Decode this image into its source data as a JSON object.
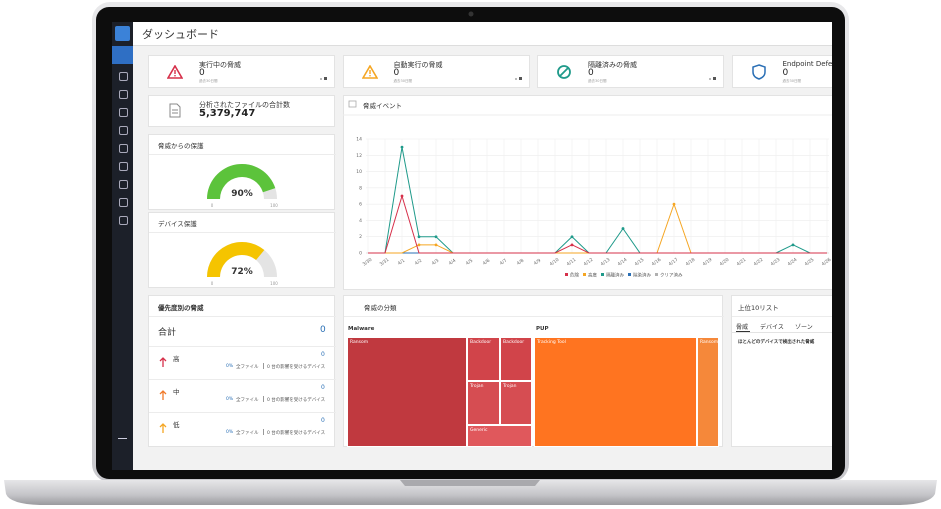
{
  "header": {
    "title": "ダッシュボード"
  },
  "cards": [
    {
      "label": "実行中の脅威",
      "value": 0,
      "note": "過去30日間"
    },
    {
      "label": "自動実行の脅威",
      "value": 0,
      "note": "過去30日間"
    },
    {
      "label": "隔離済みの脅威",
      "value": 0,
      "note": "過去30日間"
    },
    {
      "label": "Endpoint Defense",
      "value": 0,
      "note": "過去30日間"
    }
  ],
  "files": {
    "label": "分析されたファイルの合計数",
    "value": "5,379,747"
  },
  "gauges": [
    {
      "title": "脅威からの保護",
      "value": 90,
      "value_label": "90%",
      "range": [
        0,
        100
      ],
      "color": "#5cc33b"
    },
    {
      "title": "デバイス保護",
      "value": 72,
      "value_label": "72%",
      "range": [
        0,
        100
      ],
      "color": "#f5c400"
    }
  ],
  "priority": {
    "title": "優先度別の脅威",
    "total_label": "合計",
    "total": 0,
    "rows": [
      {
        "level": "高",
        "count": 0,
        "pct": "0%",
        "files": "全ファイル",
        "devices": "0 台の影響を受けるデバイス"
      },
      {
        "level": "中",
        "count": 0,
        "pct": "0%",
        "files": "全ファイル",
        "devices": "0 台の影響を受けるデバイス"
      },
      {
        "level": "低",
        "count": 0,
        "pct": "0%",
        "files": "全ファイル",
        "devices": "0 台の影響を受けるデバイス"
      }
    ]
  },
  "classification": {
    "title": "脅威の分類",
    "groups": [
      {
        "name": "Malware",
        "items": [
          "Ransom",
          "Backdoor",
          "Backdoor",
          "Trojan",
          "Trojan",
          "Generic"
        ]
      },
      {
        "name": "PUP",
        "items": [
          "Tracking Tool",
          "Ransom"
        ]
      }
    ]
  },
  "top10": {
    "title": "上位10リスト",
    "tabs": [
      "脅威",
      "デバイス",
      "ゾーン"
    ],
    "caption": "ほとんどのデバイスで検出された脅威"
  },
  "chart_data": {
    "type": "line",
    "title": "脅威イベント",
    "x": [
      "3/30",
      "3/31",
      "4/1",
      "4/2",
      "4/3",
      "4/4",
      "4/5",
      "4/6",
      "4/7",
      "4/8",
      "4/9",
      "4/10",
      "4/11",
      "4/12",
      "4/13",
      "4/14",
      "4/15",
      "4/16",
      "4/17",
      "4/18",
      "4/19",
      "4/20",
      "4/21",
      "4/22",
      "4/23",
      "4/24",
      "4/25",
      "4/26"
    ],
    "series": [
      {
        "name": "危険",
        "color": "#d6304a",
        "values": [
          0,
          0,
          7,
          0,
          0,
          0,
          0,
          0,
          0,
          0,
          0,
          0,
          1,
          0,
          0,
          0,
          0,
          0,
          0,
          0,
          0,
          0,
          0,
          0,
          0,
          0,
          0,
          0
        ]
      },
      {
        "name": "高度",
        "color": "#f5a623",
        "values": [
          0,
          0,
          0,
          1,
          1,
          0,
          0,
          0,
          0,
          0,
          0,
          0,
          0,
          0,
          0,
          0,
          0,
          0,
          6,
          0,
          0,
          0,
          0,
          0,
          0,
          0,
          0,
          0
        ]
      },
      {
        "name": "隔離済み",
        "color": "#1f9a8a",
        "values": [
          0,
          0,
          13,
          2,
          2,
          0,
          0,
          0,
          0,
          0,
          0,
          0,
          2,
          0,
          0,
          3,
          0,
          0,
          0,
          0,
          0,
          0,
          0,
          0,
          0,
          1,
          0,
          0
        ]
      },
      {
        "name": "除染済み",
        "color": "#2a6fb5",
        "values": [
          0,
          0,
          0,
          0,
          0,
          0,
          0,
          0,
          0,
          0,
          0,
          0,
          0,
          0,
          0,
          0,
          0,
          0,
          0,
          0,
          0,
          0,
          0,
          0,
          0,
          0,
          0,
          0
        ]
      },
      {
        "name": "クリア済み",
        "color": "#b0b0b0",
        "values": [
          0,
          0,
          0,
          0,
          0,
          0,
          0,
          0,
          0,
          0,
          0,
          0,
          0,
          0,
          0,
          0,
          0,
          0,
          0,
          0,
          0,
          0,
          0,
          0,
          0,
          0,
          0,
          0
        ]
      }
    ],
    "ylim": [
      0,
      14
    ],
    "yticks": [
      0,
      2,
      4,
      6,
      8,
      10,
      12,
      14
    ],
    "grid": true,
    "legend": "bottom"
  }
}
